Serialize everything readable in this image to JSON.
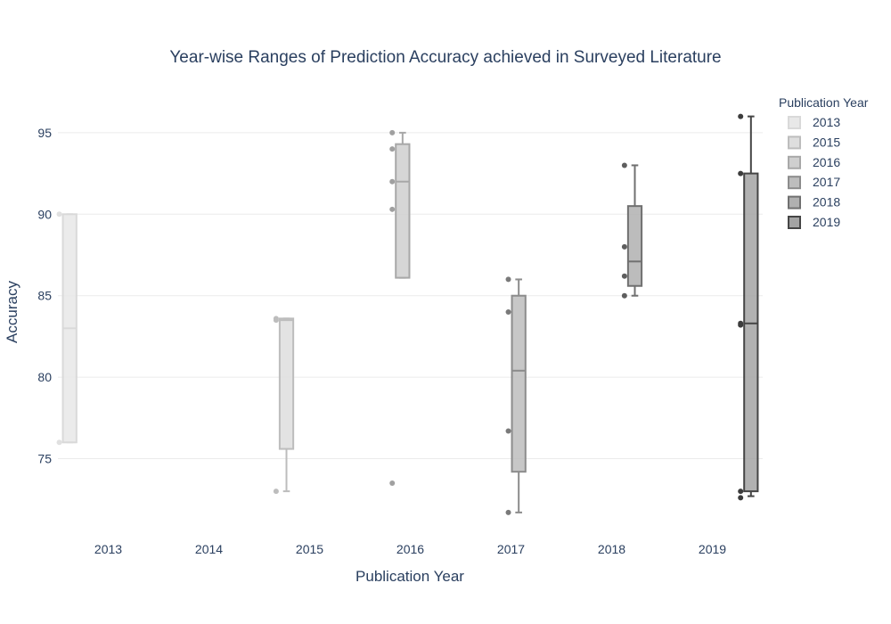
{
  "chart_data": {
    "type": "box",
    "title": "Year-wise Ranges of Prediction Accuracy achieved in Surveyed Literature",
    "xlabel": "Publication Year",
    "ylabel": "Accuracy",
    "ylim": [
      70.6,
      97.4
    ],
    "y_ticks": [
      75,
      80,
      85,
      90,
      95
    ],
    "x_categories": [
      "2013",
      "2014",
      "2015",
      "2016",
      "2017",
      "2018",
      "2019"
    ],
    "grid": "horizontal",
    "legend": {
      "title": "Publication Year",
      "placement": "right"
    },
    "series": [
      {
        "name": "2013",
        "category": "2013",
        "color": "#e8e8e8",
        "line": "#d9d9d9",
        "point": "#e0e0e0",
        "box": {
          "min": 76,
          "q1": 76,
          "median": 83,
          "q3": 90,
          "max": 90
        },
        "points": [
          90,
          76
        ]
      },
      {
        "name": "2015",
        "category": "2015",
        "color": "#dedede",
        "line": "#bdbdbd",
        "point": "#bdbdbd",
        "box": {
          "min": 73,
          "q1": 75.6,
          "median": 83.5,
          "q3": 83.6,
          "max": 83.6
        },
        "points": [
          83.5,
          83.6,
          73
        ]
      },
      {
        "name": "2016",
        "category": "2016",
        "color": "#cfcfcf",
        "line": "#a8a8a8",
        "point": "#a0a0a0",
        "box": {
          "min": 86.1,
          "q1": 86.1,
          "median": 92,
          "q3": 94.3,
          "max": 95
        },
        "points": [
          95,
          94,
          92,
          90.3,
          73.5
        ]
      },
      {
        "name": "2017",
        "category": "2017",
        "color": "#bdbdbd",
        "line": "#8c8c8c",
        "point": "#7a7a7a",
        "box": {
          "min": 71.7,
          "q1": 74.2,
          "median": 80.4,
          "q3": 85,
          "max": 86
        },
        "points": [
          86,
          84,
          76.7,
          71.7
        ]
      },
      {
        "name": "2018",
        "category": "2018",
        "color": "#b0b0b0",
        "line": "#707070",
        "point": "#5e5e5e",
        "box": {
          "min": 85,
          "q1": 85.6,
          "median": 87.1,
          "q3": 90.5,
          "max": 93
        },
        "points": [
          93,
          88,
          86.2,
          85
        ]
      },
      {
        "name": "2019",
        "category": "2019",
        "color": "#a3a3a3",
        "line": "#454545",
        "point": "#3d3d3d",
        "box": {
          "min": 72.7,
          "q1": 73,
          "median": 83.3,
          "q3": 92.5,
          "max": 96
        },
        "points": [
          96,
          92.5,
          83.3,
          83.2,
          73,
          72.6
        ]
      }
    ]
  }
}
